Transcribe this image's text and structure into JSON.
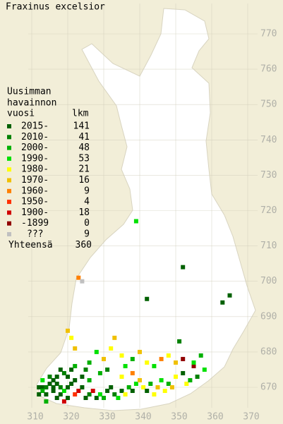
{
  "map": {
    "title": "Fraxinus excelsior",
    "legend": {
      "header": [
        "Uusimman",
        "havainnon"
      ],
      "col_year": "vuosi",
      "col_count": "lkm",
      "rows": [
        {
          "label": "2015-",
          "count": 141,
          "color": "#006000"
        },
        {
          "label": "2010-",
          "count": 41,
          "color": "#008000"
        },
        {
          "label": "2000-",
          "count": 48,
          "color": "#00b000"
        },
        {
          "label": "1990-",
          "count": 53,
          "color": "#00e000"
        },
        {
          "label": "1980-",
          "count": 21,
          "color": "#ffff00"
        },
        {
          "label": "1970-",
          "count": 16,
          "color": "#f0c000"
        },
        {
          "label": "1960-",
          "count": 9,
          "color": "#ff8000"
        },
        {
          "label": "1950-",
          "count": 4,
          "color": "#ff3000"
        },
        {
          "label": "1900-",
          "count": 18,
          "color": "#d00000"
        },
        {
          "label": "-1899",
          "count": 0,
          "color": "#900000"
        },
        {
          "label": "???",
          "count": 9,
          "color": "#c0c0c0"
        }
      ],
      "total_label": "Yhteensä",
      "total": 360
    },
    "xticks": [
      310,
      320,
      330,
      340,
      350,
      360,
      370
    ],
    "yticks": [
      670,
      680,
      690,
      700,
      710,
      720,
      730,
      740,
      750,
      760,
      770
    ],
    "points": [
      [
        339,
        717,
        3
      ],
      [
        352,
        704,
        0
      ],
      [
        342,
        695,
        0
      ],
      [
        365,
        696,
        0
      ],
      [
        363,
        694,
        0
      ],
      [
        323,
        701,
        6
      ],
      [
        324,
        700,
        10
      ],
      [
        351,
        683,
        1
      ],
      [
        312,
        670,
        0
      ],
      [
        313,
        670,
        0
      ],
      [
        314,
        670,
        1
      ],
      [
        315,
        671,
        0
      ],
      [
        316,
        670,
        0
      ],
      [
        317,
        671,
        0
      ],
      [
        318,
        670,
        1
      ],
      [
        313,
        669,
        2
      ],
      [
        314,
        668,
        0
      ],
      [
        316,
        669,
        0
      ],
      [
        318,
        668,
        0
      ],
      [
        319,
        669,
        3
      ],
      [
        320,
        670,
        0
      ],
      [
        321,
        671,
        0
      ],
      [
        322,
        672,
        0
      ],
      [
        320,
        673,
        0
      ],
      [
        319,
        674,
        1
      ],
      [
        318,
        675,
        0
      ],
      [
        321,
        675,
        0
      ],
      [
        322,
        676,
        2
      ],
      [
        317,
        673,
        0
      ],
      [
        315,
        673,
        1
      ],
      [
        316,
        672,
        0
      ],
      [
        313,
        672,
        3
      ],
      [
        312,
        668,
        0
      ],
      [
        314,
        666,
        2
      ],
      [
        317,
        667,
        0
      ],
      [
        319,
        666,
        8
      ],
      [
        320,
        667,
        0
      ],
      [
        322,
        668,
        7
      ],
      [
        323,
        669,
        8
      ],
      [
        324,
        670,
        0
      ],
      [
        325,
        667,
        0
      ],
      [
        326,
        668,
        1
      ],
      [
        327,
        669,
        8
      ],
      [
        328,
        667,
        0
      ],
      [
        329,
        668,
        3
      ],
      [
        330,
        667,
        2
      ],
      [
        331,
        669,
        0
      ],
      [
        332,
        670,
        0
      ],
      [
        333,
        668,
        1
      ],
      [
        334,
        667,
        3
      ],
      [
        335,
        669,
        0
      ],
      [
        336,
        668,
        4
      ],
      [
        337,
        670,
        2
      ],
      [
        338,
        669,
        0
      ],
      [
        339,
        671,
        3
      ],
      [
        340,
        672,
        5
      ],
      [
        341,
        670,
        4
      ],
      [
        342,
        669,
        0
      ],
      [
        343,
        671,
        2
      ],
      [
        344,
        668,
        4
      ],
      [
        345,
        670,
        5
      ],
      [
        346,
        672,
        3
      ],
      [
        347,
        669,
        4
      ],
      [
        348,
        671,
        2
      ],
      [
        349,
        670,
        5
      ],
      [
        350,
        673,
        4
      ],
      [
        352,
        674,
        0
      ],
      [
        353,
        671,
        4
      ],
      [
        354,
        672,
        2
      ],
      [
        356,
        673,
        1
      ],
      [
        358,
        675,
        3
      ],
      [
        355,
        676,
        9
      ],
      [
        320,
        686,
        5
      ],
      [
        321,
        684,
        4
      ],
      [
        322,
        681,
        5
      ],
      [
        326,
        677,
        2
      ],
      [
        328,
        680,
        3
      ],
      [
        330,
        678,
        5
      ],
      [
        332,
        681,
        4
      ],
      [
        333,
        684,
        5
      ],
      [
        335,
        679,
        4
      ],
      [
        336,
        676,
        3
      ],
      [
        338,
        678,
        2
      ],
      [
        340,
        680,
        5
      ],
      [
        342,
        677,
        4
      ],
      [
        344,
        676,
        3
      ],
      [
        346,
        678,
        6
      ],
      [
        348,
        679,
        4
      ],
      [
        350,
        677,
        5
      ],
      [
        352,
        678,
        9
      ],
      [
        355,
        677,
        3
      ],
      [
        357,
        679,
        2
      ],
      [
        329,
        674,
        2
      ],
      [
        331,
        675,
        1
      ],
      [
        335,
        673,
        4
      ],
      [
        338,
        674,
        6
      ],
      [
        324,
        673,
        0
      ],
      [
        325,
        675,
        1
      ],
      [
        326,
        672,
        2
      ]
    ]
  }
}
